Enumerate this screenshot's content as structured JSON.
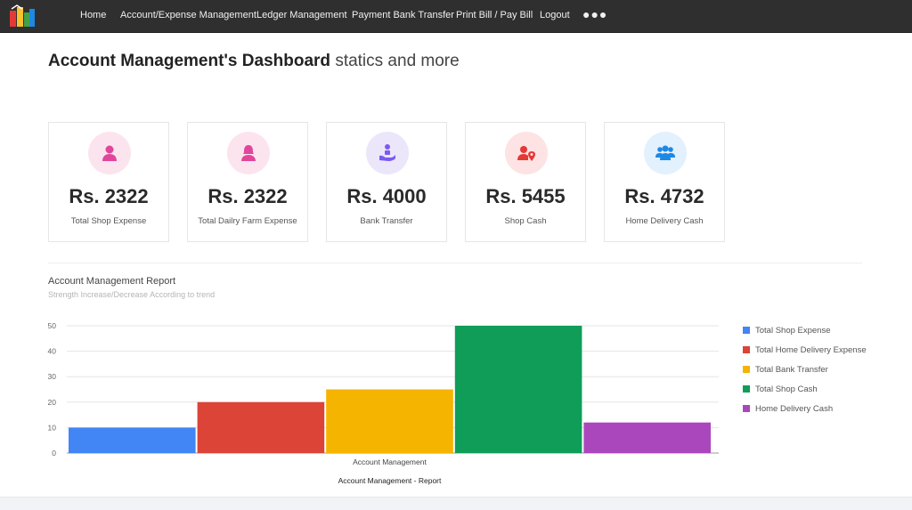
{
  "nav": {
    "items": [
      "Home",
      "Account/Expense Management",
      "Ledger Management",
      "Payment Bank Transfer",
      "Print Bill / Pay Bill",
      "Logout"
    ],
    "more": "●●●"
  },
  "page": {
    "title_bold": "Account Management's Dashboard",
    "title_light": "statics and more"
  },
  "cards": [
    {
      "value": "Rs. 2322",
      "label": "Total Shop Expense",
      "icon": "user-icon",
      "bg": "#fce4ef",
      "fg": "#e0479a"
    },
    {
      "value": "Rs. 2322",
      "label": "Total Dailry Farm Expense",
      "icon": "female-user-icon",
      "bg": "#fce4ef",
      "fg": "#e0479a"
    },
    {
      "value": "Rs. 4000",
      "label": "Bank Transfer",
      "icon": "hand-coin-icon",
      "bg": "#ece6fb",
      "fg": "#7a5cf0"
    },
    {
      "value": "Rs. 5455",
      "label": "Shop Cash",
      "icon": "user-location-icon",
      "bg": "#fde3e3",
      "fg": "#e53935"
    },
    {
      "value": "Rs. 4732",
      "label": "Home Delivery Cash",
      "icon": "users-group-icon",
      "bg": "#e3f0fd",
      "fg": "#1e88e5"
    }
  ],
  "report": {
    "title": "Account Management Report",
    "subtitle": "Strength Increase/Decrease According to trend"
  },
  "chart_data": {
    "type": "bar",
    "categories": [
      "Account Management"
    ],
    "series": [
      {
        "name": "Total Shop Expense",
        "values": [
          10
        ],
        "color": "#4285f4"
      },
      {
        "name": "Total Home Delivery Expense",
        "values": [
          20
        ],
        "color": "#db4437"
      },
      {
        "name": "Total Bank Transfer",
        "values": [
          25
        ],
        "color": "#f4b400"
      },
      {
        "name": "Total Shop Cash",
        "values": [
          50
        ],
        "color": "#0f9d58"
      },
      {
        "name": "Home Delivery Cash",
        "values": [
          12
        ],
        "color": "#ab47bc"
      }
    ],
    "title": "",
    "xlabel": "Account Management - Report",
    "ylabel": "",
    "ylim": [
      0,
      50
    ],
    "yticks": [
      0,
      10,
      20,
      30,
      40,
      50
    ],
    "grid": true,
    "legend": "right"
  }
}
